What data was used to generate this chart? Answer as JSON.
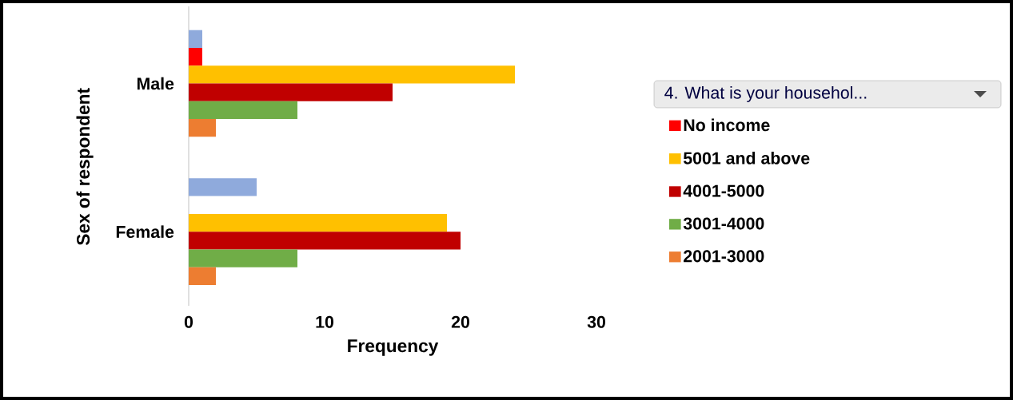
{
  "chart_data": {
    "type": "bar",
    "orientation": "horizontal",
    "xlabel": "Frequency",
    "ylabel": "Sex of respondent",
    "legend_title": "4. What is your househol...",
    "categories": [
      "Male",
      "Female"
    ],
    "series": [
      {
        "color": "#8faadc",
        "values": [
          1,
          5
        ]
      },
      {
        "name": "No income",
        "color": "#ff0000",
        "values": [
          1,
          null
        ]
      },
      {
        "name": "5001 and above",
        "color": "#ffc000",
        "values": [
          24,
          19
        ]
      },
      {
        "name": "4001-5000",
        "color": "#c00000",
        "values": [
          15,
          20
        ]
      },
      {
        "name": "3001-4000",
        "color": "#70ad47",
        "values": [
          8,
          8
        ]
      },
      {
        "name": "2001-3000",
        "color": "#ed7d31",
        "values": [
          2,
          2
        ]
      }
    ],
    "xlim": [
      0,
      30
    ],
    "xticks": [
      0,
      10,
      20,
      30
    ],
    "legend": "right"
  }
}
